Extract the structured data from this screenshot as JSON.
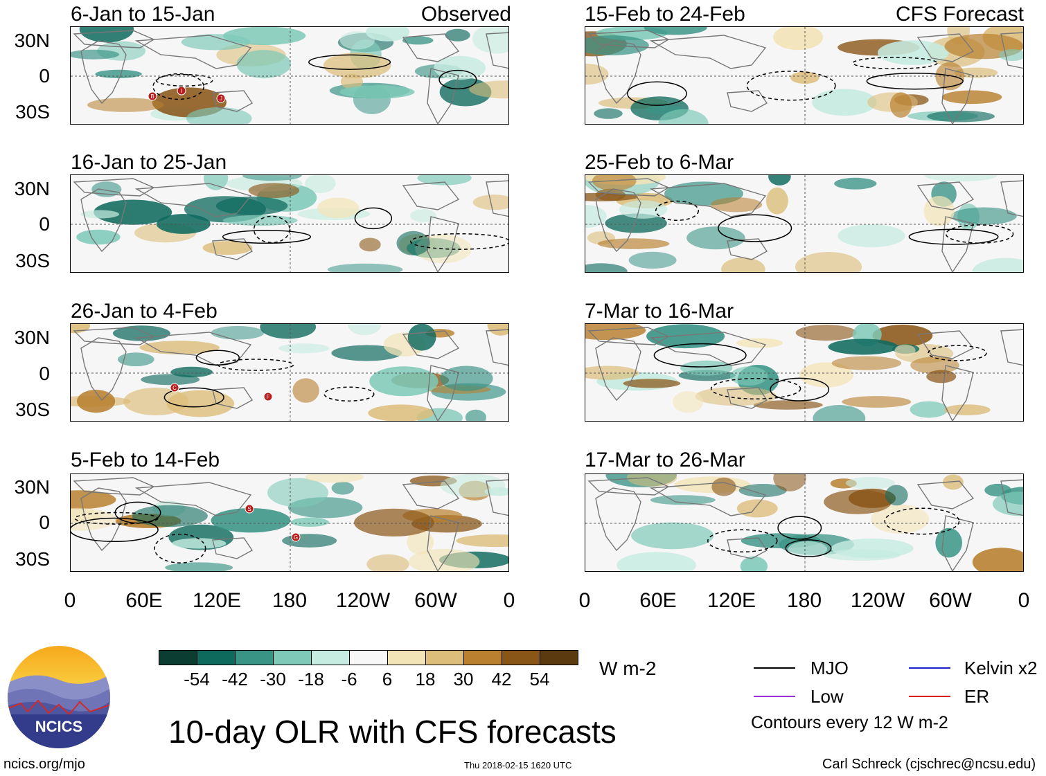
{
  "panels_left": [
    {
      "title": "6-Jan to 15-Jan",
      "label": "Observed",
      "markers": [
        "B",
        "I",
        "J"
      ]
    },
    {
      "title": "16-Jan to 25-Jan",
      "label": "",
      "markers": []
    },
    {
      "title": "26-Jan to 4-Feb",
      "label": "",
      "markers": [
        "C",
        "F"
      ]
    },
    {
      "title": "5-Feb to 14-Feb",
      "label": "",
      "markers": [
        "S",
        "G"
      ]
    }
  ],
  "panels_right": [
    {
      "title": "15-Feb to 24-Feb",
      "label": "CFS Forecast"
    },
    {
      "title": "25-Feb to 6-Mar",
      "label": ""
    },
    {
      "title": "7-Mar to 16-Mar",
      "label": ""
    },
    {
      "title": "17-Mar to 26-Mar",
      "label": ""
    }
  ],
  "lat_labels": [
    "30N",
    "0",
    "30S"
  ],
  "lon_labels": [
    "0",
    "60E",
    "120E",
    "180",
    "120W",
    "60W",
    "0"
  ],
  "colorbar": {
    "colors": [
      "#0b3d33",
      "#0f6a5e",
      "#3a9486",
      "#7ec9b8",
      "#c6ebe0",
      "#f7f7f7",
      "#f3e4b8",
      "#dcbd7a",
      "#b8802f",
      "#8a5618",
      "#5b3a10"
    ],
    "ticks": [
      "-54",
      "-42",
      "-30",
      "-18",
      "-6",
      "6",
      "18",
      "30",
      "42",
      "54"
    ],
    "units": "W m-2"
  },
  "title": "10-day OLR with CFS forecasts",
  "legend": {
    "items": [
      {
        "label": "MJO",
        "color": "#000000"
      },
      {
        "label": "Kelvin x2",
        "color": "#1f1fcc"
      },
      {
        "label": "Low",
        "color": "#9b30d9"
      },
      {
        "label": "ER",
        "color": "#d62020"
      }
    ],
    "note": "Contours every 12 W m-2"
  },
  "logo": {
    "text": "NCICS"
  },
  "footer": {
    "url": "ncics.org/mjo",
    "timestamp": "Thu 2018-02-15 1620 UTC",
    "author": "Carl Schreck (cjschrec@ncsu.edu)"
  }
}
